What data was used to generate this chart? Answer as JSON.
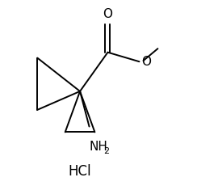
{
  "bg_color": "#ffffff",
  "line_color": "#000000",
  "line_width": 1.4,
  "font_size_atom": 11,
  "font_size_sub": 8,
  "font_size_hcl": 12,
  "spiro": [
    0.4,
    0.52
  ],
  "hcl_text": "HCl",
  "nh2_text": "NH",
  "o_carbonyl": "O",
  "o_ester": "O"
}
